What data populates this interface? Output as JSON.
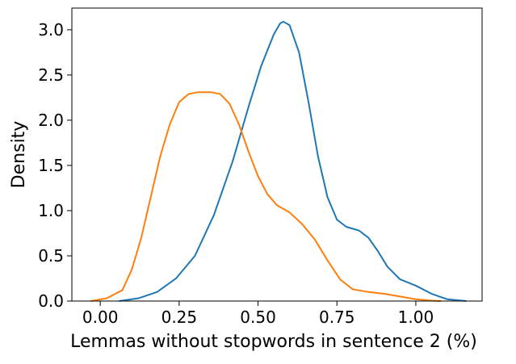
{
  "chart_data": {
    "type": "line",
    "title": "",
    "xlabel": "Lemmas without stopwords in sentence 2 (%)",
    "ylabel": "Density",
    "xlim": [
      -0.09,
      1.21
    ],
    "ylim": [
      0,
      3.24
    ],
    "x_ticks": [
      {
        "value": 0.0,
        "label": "0.00"
      },
      {
        "value": 0.25,
        "label": "0.25"
      },
      {
        "value": 0.5,
        "label": "0.50"
      },
      {
        "value": 0.75,
        "label": "0.75"
      },
      {
        "value": 1.0,
        "label": "1.00"
      }
    ],
    "y_ticks": [
      {
        "value": 0.0,
        "label": "0.0"
      },
      {
        "value": 0.5,
        "label": "0.5"
      },
      {
        "value": 1.0,
        "label": "1.0"
      },
      {
        "value": 1.5,
        "label": "1.5"
      },
      {
        "value": 2.0,
        "label": "2.0"
      },
      {
        "value": 2.5,
        "label": "2.5"
      },
      {
        "value": 3.0,
        "label": "3.0"
      }
    ],
    "grid": false,
    "legend": "none",
    "series": [
      {
        "color": "#1f77b4",
        "points": [
          [
            0.06,
            0.0
          ],
          [
            0.12,
            0.03
          ],
          [
            0.18,
            0.1
          ],
          [
            0.24,
            0.25
          ],
          [
            0.3,
            0.5
          ],
          [
            0.36,
            0.95
          ],
          [
            0.42,
            1.55
          ],
          [
            0.47,
            2.15
          ],
          [
            0.51,
            2.6
          ],
          [
            0.55,
            2.95
          ],
          [
            0.57,
            3.07
          ],
          [
            0.58,
            3.09
          ],
          [
            0.6,
            3.05
          ],
          [
            0.63,
            2.75
          ],
          [
            0.66,
            2.2
          ],
          [
            0.69,
            1.6
          ],
          [
            0.72,
            1.15
          ],
          [
            0.75,
            0.9
          ],
          [
            0.78,
            0.82
          ],
          [
            0.82,
            0.78
          ],
          [
            0.85,
            0.7
          ],
          [
            0.88,
            0.55
          ],
          [
            0.91,
            0.38
          ],
          [
            0.95,
            0.24
          ],
          [
            1.0,
            0.17
          ],
          [
            1.05,
            0.08
          ],
          [
            1.1,
            0.02
          ],
          [
            1.16,
            0.0
          ]
        ]
      },
      {
        "color": "#ff7f0e",
        "points": [
          [
            -0.03,
            0.0
          ],
          [
            0.02,
            0.03
          ],
          [
            0.07,
            0.12
          ],
          [
            0.1,
            0.35
          ],
          [
            0.13,
            0.7
          ],
          [
            0.16,
            1.15
          ],
          [
            0.19,
            1.6
          ],
          [
            0.22,
            1.95
          ],
          [
            0.25,
            2.2
          ],
          [
            0.28,
            2.29
          ],
          [
            0.31,
            2.31
          ],
          [
            0.35,
            2.31
          ],
          [
            0.38,
            2.29
          ],
          [
            0.41,
            2.18
          ],
          [
            0.44,
            1.95
          ],
          [
            0.47,
            1.65
          ],
          [
            0.5,
            1.38
          ],
          [
            0.53,
            1.18
          ],
          [
            0.56,
            1.06
          ],
          [
            0.6,
            0.98
          ],
          [
            0.64,
            0.85
          ],
          [
            0.68,
            0.68
          ],
          [
            0.72,
            0.45
          ],
          [
            0.76,
            0.24
          ],
          [
            0.8,
            0.13
          ],
          [
            0.85,
            0.1
          ],
          [
            0.9,
            0.08
          ],
          [
            0.95,
            0.05
          ],
          [
            1.0,
            0.02
          ],
          [
            1.05,
            0.005
          ],
          [
            1.08,
            0.0
          ]
        ]
      }
    ]
  }
}
